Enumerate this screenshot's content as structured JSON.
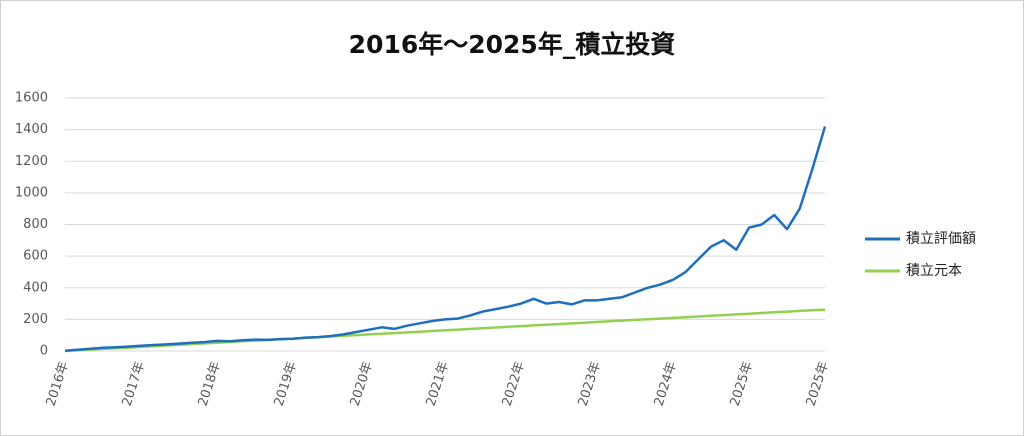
{
  "chart_data": {
    "type": "line",
    "title": "2016年～2025年_積立投資",
    "categories": [
      "2016年",
      null,
      null,
      null,
      null,
      null,
      "2017年",
      null,
      null,
      null,
      null,
      null,
      "2018年",
      null,
      null,
      null,
      null,
      null,
      "2019年",
      null,
      null,
      null,
      null,
      null,
      "2020年",
      null,
      null,
      null,
      null,
      null,
      "2021年",
      null,
      null,
      null,
      null,
      null,
      "2022年",
      null,
      null,
      null,
      null,
      null,
      "2023年",
      null,
      null,
      null,
      null,
      null,
      "2024年",
      null,
      null,
      null,
      null,
      null,
      "2025年",
      null,
      null,
      null,
      null,
      null,
      "2025年"
    ],
    "series": [
      {
        "name": "積立評価額",
        "color": "#1f6fbf",
        "values": [
          2,
          8,
          14,
          20,
          24,
          28,
          33,
          38,
          42,
          47,
          52,
          56,
          64,
          62,
          68,
          72,
          70,
          75,
          78,
          85,
          88,
          95,
          105,
          120,
          135,
          150,
          140,
          160,
          175,
          190,
          200,
          205,
          225,
          250,
          265,
          280,
          300,
          330,
          300,
          310,
          295,
          320,
          320,
          330,
          340,
          370,
          400,
          420,
          450,
          500,
          580,
          660,
          700,
          640,
          780,
          800,
          860,
          770,
          900,
          1150,
          1420
        ]
      },
      {
        "name": "積立元本",
        "color": "#92d050",
        "values": [
          0,
          4.4,
          8.7,
          13.1,
          17.5,
          21.8,
          26.2,
          30.6,
          34.9,
          39.3,
          43.7,
          48.0,
          52.4,
          56.8,
          61.1,
          65.5,
          69.9,
          74.2,
          78.6,
          83.0,
          87.3,
          91.7,
          96.1,
          100.4,
          104.8,
          109.2,
          113.5,
          117.9,
          122.3,
          126.6,
          131.0,
          135.4,
          139.7,
          144.1,
          148.5,
          152.8,
          157.2,
          161.6,
          165.9,
          170.3,
          174.7,
          179.0,
          183.4,
          187.8,
          192.1,
          196.5,
          200.9,
          205.2,
          209.6,
          214.0,
          218.3,
          222.7,
          227.1,
          231.4,
          235.8,
          240.2,
          244.5,
          248.9,
          253.3,
          257.6,
          262.0
        ]
      }
    ],
    "ylim": [
      0,
      1600
    ],
    "yticks": [
      0,
      200,
      400,
      600,
      800,
      1000,
      1200,
      1400,
      1600
    ],
    "grid": true,
    "legend": "right"
  }
}
